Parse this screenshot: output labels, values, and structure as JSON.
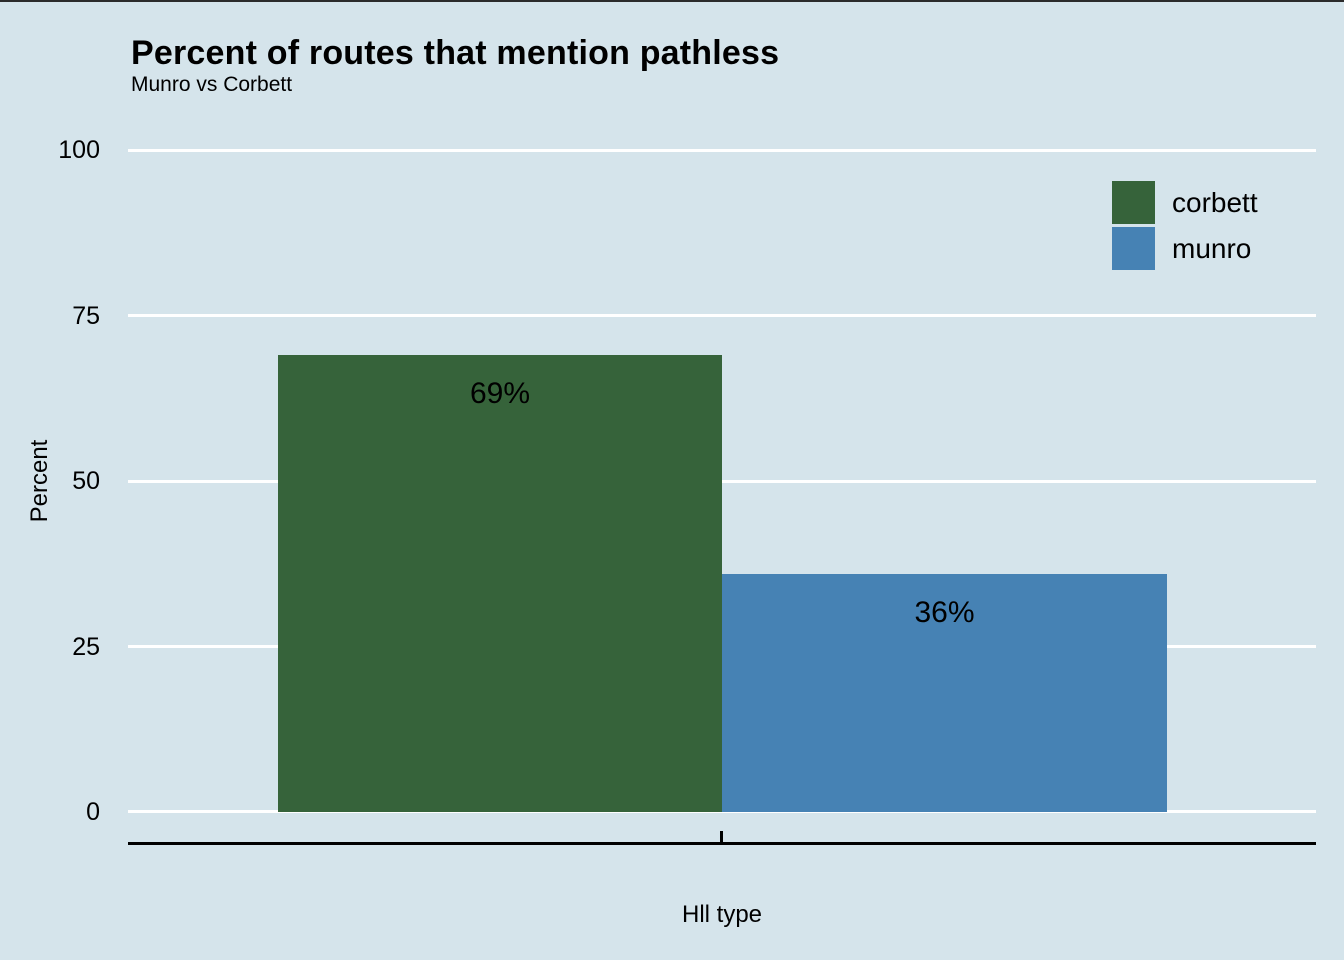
{
  "chart": {
    "title": "Percent of routes that mention pathless",
    "subtitle": "Munro vs Corbett",
    "y_axis": {
      "title": "Percent",
      "tick_labels": [
        "100",
        "75",
        "50",
        "25",
        "0"
      ]
    },
    "x_axis": {
      "title": "Hll type"
    },
    "legend": {
      "items": [
        {
          "label": "corbett"
        },
        {
          "label": "munro"
        }
      ]
    },
    "bar_labels": [
      "69%",
      "36%"
    ]
  },
  "chart_data": {
    "type": "bar",
    "title": "Percent of routes that mention pathless",
    "subtitle": "Munro vs Corbett",
    "xlabel": "Hll type",
    "ylabel": "Percent",
    "categories": [
      "corbett",
      "munro"
    ],
    "values": [
      69,
      36
    ],
    "value_labels": [
      "69%",
      "36%"
    ],
    "ylim": [
      0,
      100
    ],
    "yticks": [
      0,
      25,
      50,
      75,
      100
    ],
    "grid": true,
    "gridline_color": "#ffffff",
    "background_color": "#d5e4eb",
    "axis_line_color": "#000000",
    "legend_position": "right-top",
    "colors": {
      "corbett": "#36633a",
      "munro": "#4682b4"
    }
  }
}
